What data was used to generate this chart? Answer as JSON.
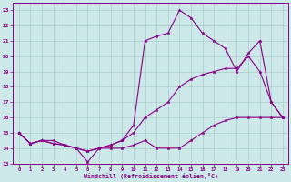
{
  "xlabel": "Windchill (Refroidissement éolien,°C)",
  "bg_color": "#cce8e8",
  "grid_color": "#aacccc",
  "line_color": "#880088",
  "x_ticks": [
    0,
    1,
    2,
    3,
    4,
    5,
    6,
    7,
    8,
    9,
    10,
    11,
    12,
    13,
    14,
    15,
    16,
    17,
    18,
    19,
    20,
    21,
    22,
    23
  ],
  "y_ticks": [
    13,
    14,
    15,
    16,
    17,
    18,
    19,
    20,
    21,
    22,
    23
  ],
  "ylim": [
    13,
    23.5
  ],
  "xlim": [
    -0.5,
    23.5
  ],
  "series": [
    {
      "x": [
        0,
        1,
        2,
        3,
        4,
        5,
        6,
        7,
        8,
        9,
        10,
        11,
        12,
        13,
        14,
        15,
        16,
        17,
        18,
        19,
        20,
        21,
        22,
        23
      ],
      "y": [
        15.0,
        14.3,
        14.5,
        14.5,
        14.2,
        14.0,
        13.8,
        14.0,
        14.0,
        14.0,
        14.2,
        14.5,
        14.0,
        14.0,
        14.0,
        14.5,
        15.0,
        15.5,
        15.8,
        16.0,
        16.0,
        16.0,
        16.0,
        16.0
      ]
    },
    {
      "x": [
        0,
        1,
        2,
        3,
        4,
        5,
        6,
        7,
        8,
        9,
        10,
        11,
        12,
        13,
        14,
        15,
        16,
        17,
        18,
        19,
        20,
        21,
        22,
        23
      ],
      "y": [
        15.0,
        14.3,
        14.5,
        14.3,
        14.2,
        14.0,
        13.8,
        14.0,
        14.2,
        14.5,
        15.0,
        16.0,
        16.5,
        17.0,
        18.0,
        18.5,
        18.8,
        19.0,
        19.2,
        19.2,
        20.0,
        19.0,
        17.0,
        16.0
      ]
    },
    {
      "x": [
        0,
        1,
        2,
        3,
        4,
        5,
        6,
        7,
        8,
        9,
        10,
        11,
        12,
        13,
        14,
        15,
        16,
        17,
        18,
        19,
        20,
        21,
        22,
        23
      ],
      "y": [
        15.0,
        14.3,
        14.5,
        14.3,
        14.2,
        14.0,
        13.1,
        14.0,
        14.2,
        14.5,
        15.5,
        21.0,
        21.3,
        21.5,
        23.0,
        22.5,
        21.5,
        21.0,
        20.5,
        19.0,
        20.2,
        21.0,
        17.0,
        16.0
      ]
    }
  ]
}
